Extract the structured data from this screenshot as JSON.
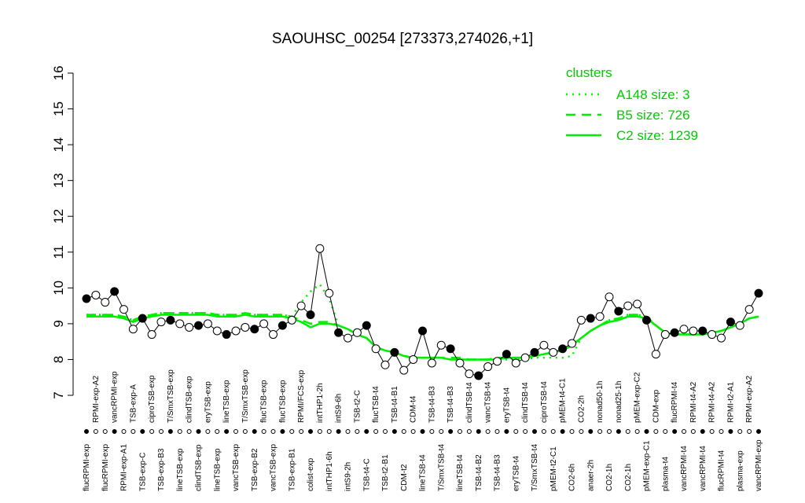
{
  "chart_data": {
    "type": "line",
    "title": "SAOUHSC_00254 [273373,274026,+1]",
    "ylim": [
      7,
      16
    ],
    "yticks": [
      7,
      8,
      9,
      10,
      11,
      12,
      13,
      14,
      15,
      16
    ],
    "legend_title": "clusters",
    "legend_position": "top-right",
    "point_color": "#000000",
    "categories": [
      "flucRPMI-exp",
      "RPMI-exp-A2",
      "flucRPMI-exp",
      "vancRPMI-exp",
      "RPMI-exp-A1",
      "TSB-exp-A",
      "TSB-exp-C",
      "ciproTSB-exp",
      "TSB-exp-B3",
      "T/SmxTSB-exp",
      "lineTSB-exp",
      "clindTSB-exp",
      "clindTSB-exp",
      "eryTSB-exp",
      "lineTSB-exp",
      "lineTSB-exp",
      "vancTSB-exp",
      "T/SmxTSB-exp",
      "TSB-exp-B2",
      "flucTSB-exp",
      "vancTSB-exp",
      "flucTSB-exp",
      "TSB-exp-B1",
      "RPMI/FCS-exp",
      "colist-exp",
      "intTHP1-2h",
      "intTHP1-6h",
      "intS9-6h",
      "intS9-2h",
      "TSB-t2-C",
      "TSB-t4-C",
      "flucTSB-t4",
      "TSB-t2-B1",
      "TSB-t4-B1",
      "CDM-t2",
      "CDM-t4",
      "lineTSB-t4",
      "TSB-t4-B3",
      "T/SmxTSB-t4",
      "TSB-t4-B3",
      "lineTSB-t4",
      "clindTSB-t4",
      "TSB-t4-B2",
      "vancTSB-t4",
      "TSB-t4-B3",
      "eryTSB-t4",
      "eryTSB-t4",
      "clindTSB-t4",
      "T/SmxTSB-t4",
      "ciproTSB-t4",
      "pMEM-t2-C1",
      "pMEM-t4-C1",
      "CO2-6h",
      "CO2-2h",
      "anaer-2h",
      "nonad50-1h",
      "CO2-1h",
      "nonad25-1h",
      "CO2-1h",
      "pMEM-exp-C2",
      "pMEM-exp-C1",
      "CDM-exp",
      "plasma-t4",
      "flucRPMI-t4",
      "vancRPMI-t4",
      "RPMI-t4-A2",
      "vancRPMI-t4",
      "RPMI-t4-A2",
      "flucRPMI-t4",
      "RPMI-t2-A1",
      "plasma-exp",
      "RPMI-exp-A2",
      "vancRPMI-exp"
    ],
    "values": [
      9.7,
      9.8,
      9.6,
      9.9,
      9.4,
      8.85,
      9.15,
      8.7,
      9.05,
      9.1,
      9.0,
      8.9,
      8.95,
      9.0,
      8.8,
      8.7,
      8.8,
      8.9,
      8.85,
      9.0,
      8.7,
      8.95,
      9.1,
      9.5,
      9.25,
      11.1,
      9.85,
      8.75,
      8.6,
      8.75,
      8.95,
      8.3,
      7.85,
      8.2,
      7.7,
      8.0,
      8.8,
      7.9,
      8.4,
      8.3,
      7.9,
      7.6,
      7.55,
      7.8,
      7.95,
      8.15,
      7.9,
      8.05,
      8.2,
      8.4,
      8.2,
      8.3,
      8.45,
      9.1,
      9.15,
      9.2,
      9.75,
      9.35,
      9.5,
      9.55,
      9.1,
      8.15,
      8.7,
      8.75,
      8.85,
      8.8,
      8.8,
      8.7,
      8.6,
      9.05,
      8.95,
      9.4,
      9.85
    ],
    "series": [
      {
        "name": "A148 size: 3",
        "color": "#00ee00",
        "linestyle": "dotted",
        "values": [
          9.25,
          9.25,
          9.25,
          9.25,
          9.2,
          9.1,
          9.2,
          9.25,
          9.3,
          9.3,
          9.3,
          9.3,
          9.3,
          9.3,
          9.25,
          9.25,
          9.25,
          9.3,
          9.25,
          9.25,
          9.25,
          9.25,
          9.2,
          9.6,
          9.9,
          10.1,
          9.7,
          8.95,
          8.85,
          8.7,
          8.6,
          8.35,
          8.25,
          8.2,
          8.1,
          8.05,
          8.05,
          8.05,
          8.05,
          8.0,
          8.0,
          8.0,
          8.0,
          8.0,
          8.0,
          8.0,
          8.0,
          8.0,
          8.05,
          8.05,
          8.05,
          8.05,
          8.1,
          8.6,
          8.8,
          8.95,
          9.1,
          9.15,
          9.25,
          9.25,
          9.2,
          8.95,
          8.75,
          8.7,
          8.7,
          8.7,
          8.7,
          8.75,
          8.8,
          8.9,
          9.0,
          9.15,
          9.2
        ]
      },
      {
        "name": "B5 size: 726",
        "color": "#00ee00",
        "linestyle": "dashed",
        "values": [
          9.25,
          9.25,
          9.25,
          9.25,
          9.2,
          9.1,
          9.2,
          9.25,
          9.3,
          9.3,
          9.3,
          9.3,
          9.3,
          9.3,
          9.25,
          9.25,
          9.25,
          9.3,
          9.25,
          9.25,
          9.25,
          9.25,
          9.2,
          9.1,
          9.0,
          9.05,
          9.05,
          8.95,
          8.85,
          8.7,
          8.6,
          8.35,
          8.25,
          8.2,
          8.1,
          8.05,
          8.05,
          8.05,
          8.05,
          8.05,
          8.05,
          8.0,
          8.0,
          8.0,
          8.05,
          8.05,
          8.05,
          8.05,
          8.1,
          8.15,
          8.2,
          8.25,
          8.4,
          8.6,
          8.8,
          8.95,
          9.1,
          9.15,
          9.25,
          9.25,
          9.2,
          8.95,
          8.75,
          8.7,
          8.7,
          8.7,
          8.7,
          8.75,
          8.8,
          8.9,
          9.0,
          9.15,
          9.2
        ]
      },
      {
        "name": "C2 size: 1239",
        "color": "#00ee00",
        "linestyle": "solid",
        "values": [
          9.2,
          9.2,
          9.2,
          9.2,
          9.15,
          9.05,
          9.15,
          9.2,
          9.25,
          9.25,
          9.25,
          9.25,
          9.25,
          9.25,
          9.2,
          9.2,
          9.2,
          9.25,
          9.2,
          9.2,
          9.2,
          9.2,
          9.15,
          9.05,
          8.9,
          9.0,
          9.0,
          8.95,
          8.85,
          8.7,
          8.6,
          8.35,
          8.25,
          8.2,
          8.1,
          8.05,
          8.05,
          8.05,
          8.05,
          8.0,
          8.0,
          8.0,
          8.0,
          8.0,
          8.0,
          8.05,
          8.05,
          8.05,
          8.1,
          8.15,
          8.2,
          8.25,
          8.4,
          8.6,
          8.8,
          8.95,
          9.05,
          9.1,
          9.2,
          9.2,
          9.15,
          8.95,
          8.75,
          8.7,
          8.7,
          8.7,
          8.7,
          8.75,
          8.8,
          8.9,
          9.0,
          9.15,
          9.2
        ]
      }
    ]
  }
}
